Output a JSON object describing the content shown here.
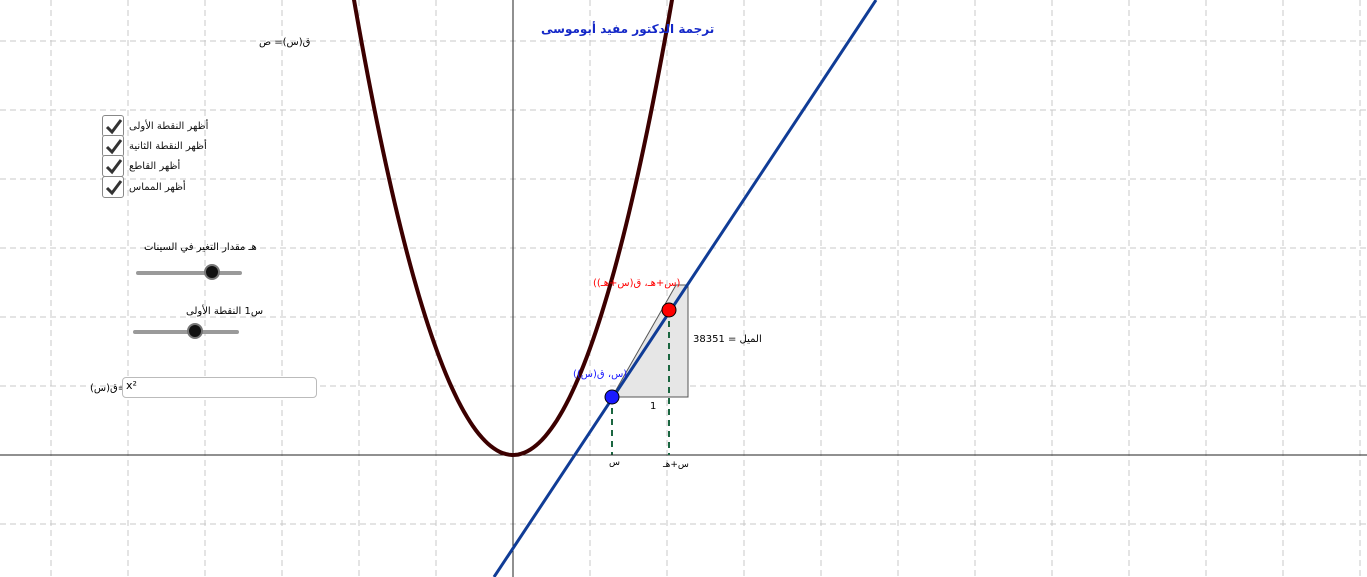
{
  "title": "ترجمة الدكتور مفيد أبوموسى",
  "function_label": "ق(س)= ص",
  "checkboxes": [
    {
      "label": "أظهر النقطة الأولى",
      "checked": true
    },
    {
      "label": "أظهر النقطة الثانية",
      "checked": true
    },
    {
      "label": "أظهر القاطع",
      "checked": true
    },
    {
      "label": "أظهر المماس",
      "checked": true
    }
  ],
  "slider_h": {
    "label": "هـ  مقدار التغير في السينات",
    "value": 0.75
  },
  "slider_x1": {
    "label": "س1 النقطة الأولى",
    "value": 0.6
  },
  "input": {
    "label": "ق(س)=",
    "value": "x²"
  },
  "point1_label": "(س، ق(س))",
  "point2_label": "(س+هـ، ق(س+هـ))",
  "slope_label": "الميل = 38351",
  "run_label": "1",
  "x_tick_1": "س",
  "x_tick_2": "س+هـ",
  "colors": {
    "curve": "#3c0000",
    "tangent": "#103c96",
    "point1": "#1a1aff",
    "point2": "#ff0000",
    "grid": "#c8c8c8",
    "triangle_fill": "#e6e6e6",
    "drop_lines": "#1a6640"
  },
  "icons": [
    "check-icon"
  ]
}
